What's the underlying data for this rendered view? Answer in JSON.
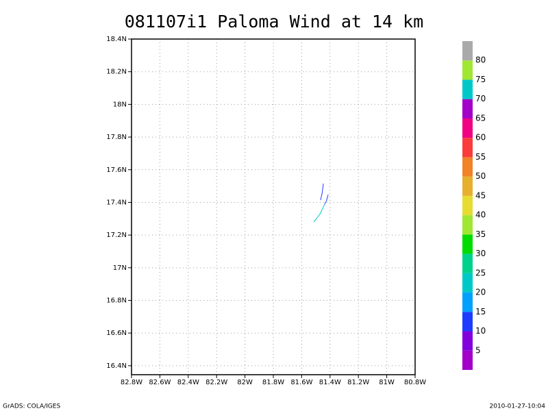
{
  "chart_data": {
    "type": "contour",
    "title": "081107i1 Paloma Wind at 14 km",
    "xlim": [
      -82.8,
      -80.8
    ],
    "ylim": [
      16.345,
      18.4
    ],
    "xticks": [
      {
        "value": -82.8,
        "label": "82.8W"
      },
      {
        "value": -82.6,
        "label": "82.6W"
      },
      {
        "value": -82.4,
        "label": "82.4W"
      },
      {
        "value": -82.2,
        "label": "82.2W"
      },
      {
        "value": -82,
        "label": "82W"
      },
      {
        "value": -81.8,
        "label": "81.8W"
      },
      {
        "value": -81.6,
        "label": "81.6W"
      },
      {
        "value": -81.4,
        "label": "81.4W"
      },
      {
        "value": -81.2,
        "label": "81.2W"
      },
      {
        "value": -81,
        "label": "81W"
      },
      {
        "value": -80.8,
        "label": "80.8W"
      }
    ],
    "yticks": [
      {
        "value": 16.4,
        "label": "16.4N"
      },
      {
        "value": 16.6,
        "label": "16.6N"
      },
      {
        "value": 16.8,
        "label": "16.8N"
      },
      {
        "value": 17,
        "label": "17N"
      },
      {
        "value": 17.2,
        "label": "17.2N"
      },
      {
        "value": 17.4,
        "label": "17.4N"
      },
      {
        "value": 17.6,
        "label": "17.6N"
      },
      {
        "value": 17.8,
        "label": "17.8N"
      },
      {
        "value": 18,
        "label": "18N"
      },
      {
        "value": 18.2,
        "label": "18.2N"
      },
      {
        "value": 18.4,
        "label": "18.4N"
      }
    ],
    "grid": true,
    "contours": [
      {
        "color": "#1e3cff",
        "x": [
          -81.447,
          -81.455,
          -81.467
        ],
        "y": [
          17.515,
          17.46,
          17.414
        ]
      },
      {
        "color": "#1e3cff",
        "x": [
          -81.413,
          -81.425,
          -81.438
        ],
        "y": [
          17.448,
          17.41,
          17.389
        ]
      },
      {
        "color": "#00c8c8",
        "x": [
          -81.438,
          -81.47,
          -81.515
        ],
        "y": [
          17.389,
          17.33,
          17.28
        ]
      }
    ],
    "colorbar": {
      "levels": [
        5,
        10,
        15,
        20,
        25,
        30,
        35,
        40,
        45,
        50,
        55,
        60,
        65,
        70,
        75,
        80
      ],
      "colors": [
        "#a000c8",
        "#8200dc",
        "#1e3cff",
        "#00a0ff",
        "#00c8c8",
        "#00d28c",
        "#00dc00",
        "#a0e632",
        "#e6dc32",
        "#e6af2d",
        "#f08228",
        "#fa3c3c",
        "#f00082",
        "#a000c8",
        "#00c8c8",
        "#a0e632",
        "#aaaaaa"
      ]
    },
    "footer_left": "GrADS: COLA/IGES",
    "footer_right": "2010-01-27-10:04"
  }
}
